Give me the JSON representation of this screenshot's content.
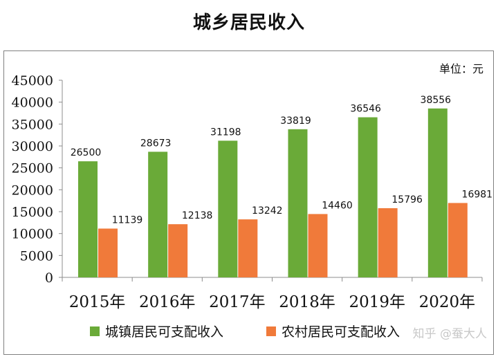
{
  "chart_data": {
    "type": "bar",
    "title": "城乡居民收入",
    "unit_label": "单位：元",
    "categories": [
      "2015年",
      "2016年",
      "2017年",
      "2018年",
      "2019年",
      "2020年"
    ],
    "series": [
      {
        "name": "城镇居民可支配收入",
        "values": [
          26500,
          28673,
          31198,
          33819,
          36546,
          38556
        ],
        "color": "#6aaa38"
      },
      {
        "name": "农村居民可支配收入",
        "values": [
          11139,
          12138,
          13242,
          14460,
          15796,
          16981
        ],
        "color": "#f07a3a"
      }
    ],
    "ylim": [
      0,
      45000
    ],
    "yticks": [
      "0",
      "5000",
      "10000",
      "15000",
      "20000",
      "25000",
      "30000",
      "35000",
      "40000",
      "45000"
    ],
    "grid": false,
    "legend_position": "bottom"
  },
  "watermark": "知乎 @蚕大人"
}
